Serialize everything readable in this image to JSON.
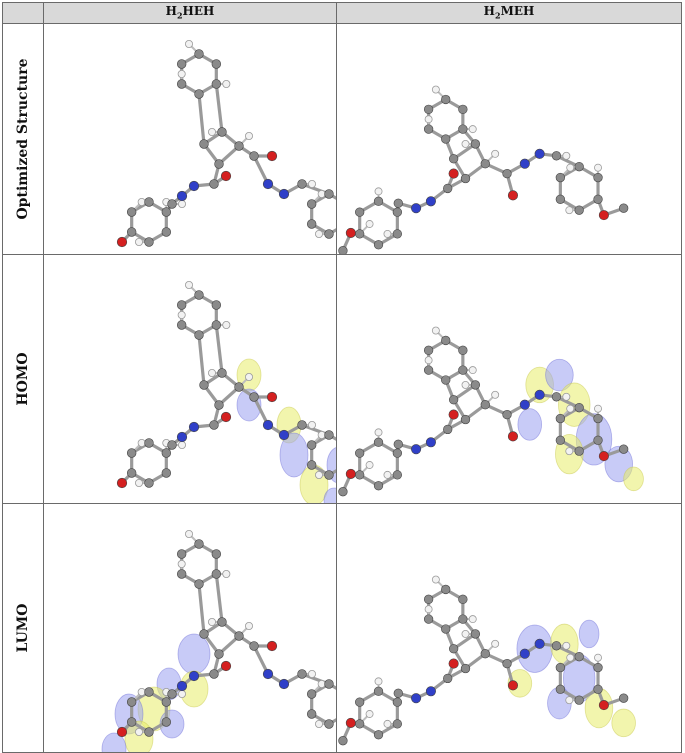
{
  "header": {
    "col1": {
      "prefix": "H",
      "sub": "2",
      "suffix": "HEH"
    },
    "col2": {
      "prefix": "H",
      "sub": "2",
      "suffix": "MEH"
    }
  },
  "rows": [
    {
      "label": "Optimized Structure",
      "orbital": "none"
    },
    {
      "label": "HOMO",
      "orbital": "homo"
    },
    {
      "label": "LUMO",
      "orbital": "lumo"
    }
  ],
  "colors": {
    "carbon": "#8a8a8a",
    "hydrogen": "#f2f2f2",
    "oxygen": "#d42020",
    "nitrogen": "#3040c8",
    "bond": "#9a9a9a",
    "lobe_yellow": "#e8ec6a",
    "lobe_blue": "#9aa0f0"
  }
}
